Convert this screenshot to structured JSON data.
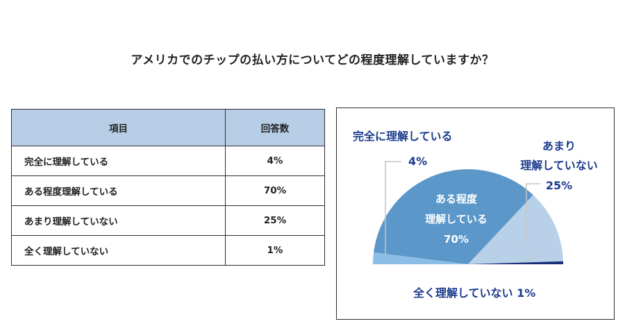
{
  "title": "アメリカでのチップの払い方についてどの程度理解していますか？",
  "table": {
    "headers": [
      "項目",
      "回答数"
    ],
    "rows": [
      {
        "item": "完全に理解している",
        "value": "4%"
      },
      {
        "item": "ある程度理解している",
        "value": "70%"
      },
      {
        "item": "あまり理解していない",
        "value": "25%"
      },
      {
        "item": "全く理解していない",
        "value": "1%"
      }
    ]
  },
  "chart_data": {
    "type": "pie",
    "subtype": "half-pie",
    "categories": [
      "完全に理解している",
      "ある程度理解している",
      "あまり理解していない",
      "全く理解していない"
    ],
    "values": [
      4,
      70,
      25,
      1
    ],
    "unit": "%",
    "colors": [
      "#8bbde6",
      "#5b97c9",
      "#b8d0e8",
      "#16307a"
    ],
    "label_color": "#1a3a8c",
    "labels": [
      {
        "lines": [
          "完全に理解している"
        ],
        "value": "4%"
      },
      {
        "lines": [
          "ある程度",
          "理解している"
        ],
        "value": "70%"
      },
      {
        "lines": [
          "あまり",
          "理解していない"
        ],
        "value": "25%"
      },
      {
        "lines": [
          "全く理解していない"
        ],
        "value": "1%"
      }
    ]
  }
}
